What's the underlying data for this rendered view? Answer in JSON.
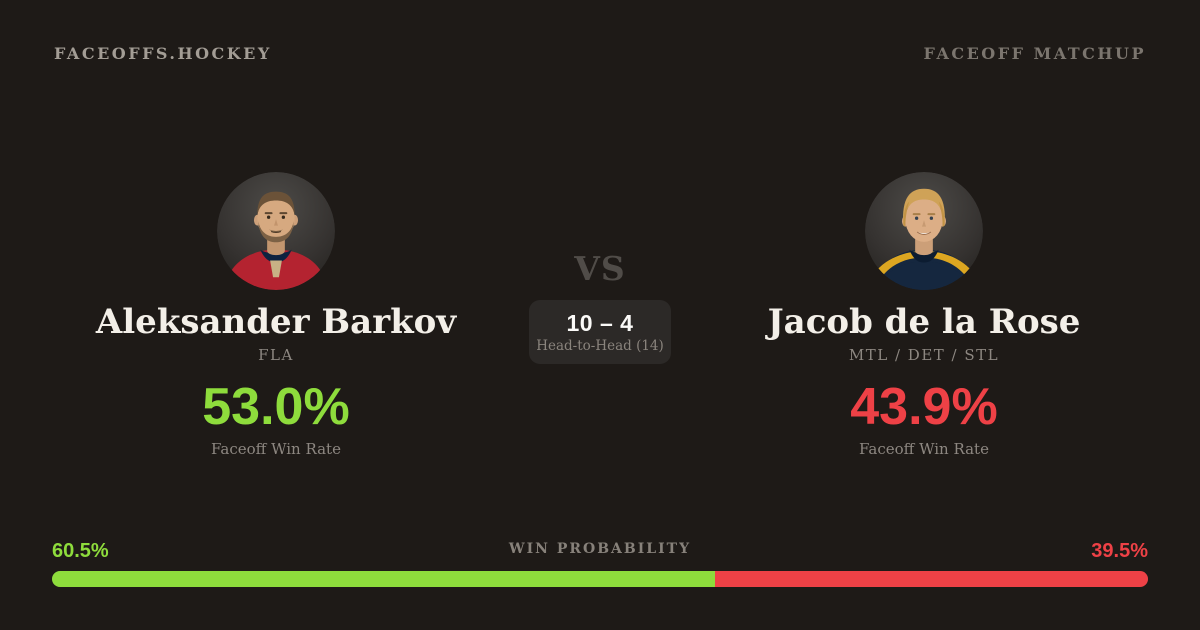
{
  "header": {
    "brand": "FACEOFFS.HOCKEY",
    "page_label": "FACEOFF MATCHUP"
  },
  "players": [
    {
      "name": "Aleksander Barkov",
      "teams": "FLA",
      "win_rate": "53.0%",
      "win_rate_label": "Faceoff Win Rate",
      "accent_color": "#8edc3c"
    },
    {
      "name": "Jacob de la Rose",
      "teams": "MTL / DET / STL",
      "win_rate": "43.9%",
      "win_rate_label": "Faceoff Win Rate",
      "accent_color": "#ee4146"
    }
  ],
  "center": {
    "vs_label": "VS",
    "head_to_head_score": "10 – 4",
    "head_to_head_label": "Head-to-Head (14)"
  },
  "win_probability": {
    "title": "WIN PROBABILITY",
    "left_label": "60.5%",
    "right_label": "39.5%",
    "left_value": 60.5,
    "right_value": 39.5,
    "left_color": "#8edc3c",
    "right_color": "#ee4146"
  },
  "colors": {
    "background": "#1e1a17",
    "panel": "#2c2927",
    "text_primary": "#f3efe8",
    "text_muted": "#8d8781",
    "green": "#8edc3c",
    "red": "#ee4146"
  }
}
